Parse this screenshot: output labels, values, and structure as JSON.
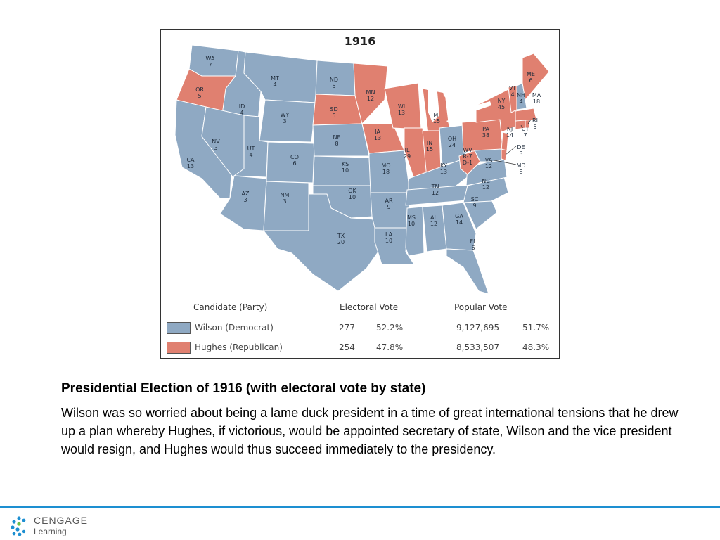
{
  "map": {
    "year": "1916",
    "colors": {
      "wilson": "#8fa9c3",
      "hughes": "#e08070",
      "border": "#ffffff",
      "lakes": "#ffffff"
    },
    "states": [
      {
        "abbr": "WA",
        "ev": "7",
        "winner": "wilson"
      },
      {
        "abbr": "OR",
        "ev": "5",
        "winner": "hughes"
      },
      {
        "abbr": "CA",
        "ev": "13",
        "winner": "wilson"
      },
      {
        "abbr": "ID",
        "ev": "4",
        "winner": "wilson"
      },
      {
        "abbr": "NV",
        "ev": "3",
        "winner": "wilson"
      },
      {
        "abbr": "MT",
        "ev": "4",
        "winner": "wilson"
      },
      {
        "abbr": "WY",
        "ev": "3",
        "winner": "wilson"
      },
      {
        "abbr": "UT",
        "ev": "4",
        "winner": "wilson"
      },
      {
        "abbr": "CO",
        "ev": "6",
        "winner": "wilson"
      },
      {
        "abbr": "AZ",
        "ev": "3",
        "winner": "wilson"
      },
      {
        "abbr": "NM",
        "ev": "3",
        "winner": "wilson"
      },
      {
        "abbr": "ND",
        "ev": "5",
        "winner": "wilson"
      },
      {
        "abbr": "SD",
        "ev": "5",
        "winner": "hughes"
      },
      {
        "abbr": "NE",
        "ev": "8",
        "winner": "wilson"
      },
      {
        "abbr": "KS",
        "ev": "10",
        "winner": "wilson"
      },
      {
        "abbr": "OK",
        "ev": "10",
        "winner": "wilson"
      },
      {
        "abbr": "TX",
        "ev": "20",
        "winner": "wilson"
      },
      {
        "abbr": "MN",
        "ev": "12",
        "winner": "hughes"
      },
      {
        "abbr": "IA",
        "ev": "13",
        "winner": "hughes"
      },
      {
        "abbr": "MO",
        "ev": "18",
        "winner": "wilson"
      },
      {
        "abbr": "AR",
        "ev": "9",
        "winner": "wilson"
      },
      {
        "abbr": "LA",
        "ev": "10",
        "winner": "wilson"
      },
      {
        "abbr": "WI",
        "ev": "13",
        "winner": "hughes"
      },
      {
        "abbr": "IL",
        "ev": "29",
        "winner": "hughes"
      },
      {
        "abbr": "MI",
        "ev": "15",
        "winner": "hughes"
      },
      {
        "abbr": "IN",
        "ev": "15",
        "winner": "hughes"
      },
      {
        "abbr": "OH",
        "ev": "24",
        "winner": "wilson"
      },
      {
        "abbr": "KY",
        "ev": "13",
        "winner": "wilson"
      },
      {
        "abbr": "TN",
        "ev": "12",
        "winner": "wilson"
      },
      {
        "abbr": "MS",
        "ev": "10",
        "winner": "wilson"
      },
      {
        "abbr": "AL",
        "ev": "12",
        "winner": "wilson"
      },
      {
        "abbr": "GA",
        "ev": "14",
        "winner": "wilson"
      },
      {
        "abbr": "FL",
        "ev": "6",
        "winner": "wilson"
      },
      {
        "abbr": "SC",
        "ev": "9",
        "winner": "wilson"
      },
      {
        "abbr": "NC",
        "ev": "12",
        "winner": "wilson"
      },
      {
        "abbr": "VA",
        "ev": "12",
        "winner": "wilson"
      },
      {
        "abbr": "WV",
        "ev": "R-7 D-1",
        "winner": "split"
      },
      {
        "abbr": "PA",
        "ev": "38",
        "winner": "hughes"
      },
      {
        "abbr": "NY",
        "ev": "45",
        "winner": "hughes"
      },
      {
        "abbr": "NJ",
        "ev": "14",
        "winner": "hughes"
      },
      {
        "abbr": "DE",
        "ev": "3",
        "winner": "hughes"
      },
      {
        "abbr": "MD",
        "ev": "8",
        "winner": "wilson"
      },
      {
        "abbr": "CT",
        "ev": "7",
        "winner": "hughes"
      },
      {
        "abbr": "RI",
        "ev": "5",
        "winner": "hughes"
      },
      {
        "abbr": "MA",
        "ev": "18",
        "winner": "hughes"
      },
      {
        "abbr": "VT",
        "ev": "4",
        "winner": "hughes"
      },
      {
        "abbr": "NH",
        "ev": "4",
        "winner": "wilson"
      },
      {
        "abbr": "ME",
        "ev": "6",
        "winner": "hughes"
      }
    ]
  },
  "legend": {
    "headers": {
      "candidate": "Candidate (Party)",
      "electoral": "Electoral Vote",
      "popular": "Popular Vote"
    },
    "rows": [
      {
        "candidate": "Wilson (Democrat)",
        "ev": "277",
        "ev_pct": "52.2%",
        "pv": "9,127,695",
        "pv_pct": "51.7%",
        "color": "#8fa9c3"
      },
      {
        "candidate": "Hughes (Republican)",
        "ev": "254",
        "ev_pct": "47.8%",
        "pv": "8,533,507",
        "pv_pct": "48.3%",
        "color": "#e08070"
      }
    ]
  },
  "caption": {
    "title": "Presidential Election of 1916 (with electoral vote by state)",
    "body": "Wilson was so worried about being a lame duck president in a time of great international tensions that he drew up a plan whereby Hughes, if victorious, would be appointed secretary of state, Wilson and the vice president would resign, and Hughes would thus succeed immediately to the presidency."
  },
  "footer": {
    "logo_icon": "cengage-dots-icon",
    "logo_line1": "CENGAGE",
    "logo_line2": "Learning",
    "accent_color": "#1d8fd1"
  }
}
